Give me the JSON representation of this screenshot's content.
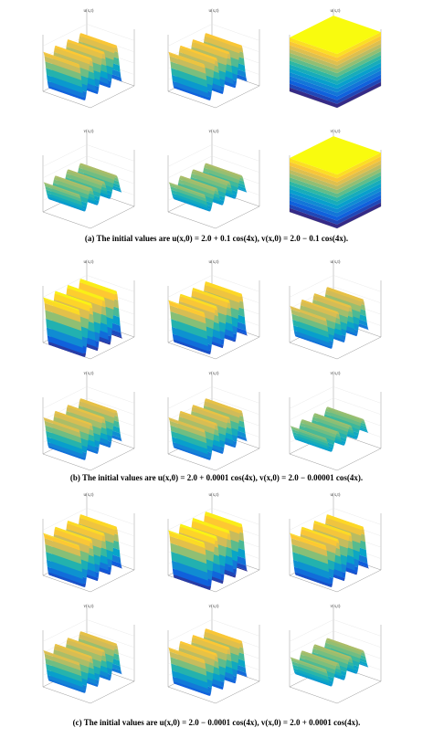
{
  "figures": [
    {
      "panels": [
        {
          "title": "u(x,t)"
        },
        {
          "title": "u(x,t)"
        },
        {
          "title": "u(x,t)"
        },
        {
          "title": "v(x,t)"
        },
        {
          "title": "v(x,t)"
        },
        {
          "title": "v(x,t)"
        }
      ],
      "caption": "(a) The initial values are u(x,0) = 2.0 + 0.1 cos(4x), v(x,0) = 2.0 − 0.1 cos(4x)."
    },
    {
      "panels": [
        {
          "title": "u(x,t)"
        },
        {
          "title": "u(x,t)"
        },
        {
          "title": "u(x,t)"
        },
        {
          "title": "v(x,t)"
        },
        {
          "title": "v(x,t)"
        },
        {
          "title": "v(x,t)"
        }
      ],
      "caption": "(b) The initial values are u(x,0) = 2.0 + 0.0001 cos(4x), v(x,0) = 2.0 − 0.00001 cos(4x)."
    },
    {
      "panels": [
        {
          "title": "u(x,t)"
        },
        {
          "title": "u(x,t)"
        },
        {
          "title": "u(x,t)"
        },
        {
          "title": "v(x,t)"
        },
        {
          "title": "v(x,t)"
        },
        {
          "title": "v(x,t)"
        }
      ],
      "caption": "(c) The initial values are u(x,0) = 2.0 − 0.0001 cos(4x), v(x,0) = 2.0 + 0.0001 cos(4x)."
    }
  ]
}
